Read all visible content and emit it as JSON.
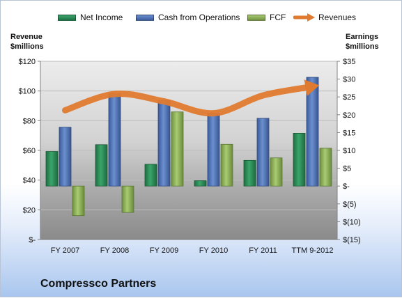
{
  "chart_data": {
    "type": "bar",
    "categories": [
      "FY 2007",
      "FY 2008",
      "FY 2009",
      "FY 2010",
      "FY 2011",
      "TTM 9-2012"
    ],
    "series": [
      {
        "name": "Net Income",
        "axis": "right",
        "type": "bar",
        "color": "#2e8b57",
        "values": [
          9.7,
          11.6,
          6.1,
          1.5,
          7.2,
          14.8
        ]
      },
      {
        "name": "Cash from Operations",
        "axis": "right",
        "type": "bar",
        "color": "#4f73b8",
        "values": [
          16.5,
          26.0,
          24.0,
          20.5,
          19.0,
          30.5
        ]
      },
      {
        "name": "FCF",
        "axis": "right",
        "type": "bar",
        "color": "#8eb35a",
        "values": [
          -8.3,
          -7.4,
          20.8,
          11.7,
          7.9,
          10.6
        ]
      },
      {
        "name": "Revenues",
        "axis": "left",
        "type": "line",
        "color": "#e07a2e",
        "values": [
          87,
          98,
          93,
          85,
          97,
          103
        ]
      }
    ],
    "left_axis": {
      "label": "Revenue\n$millions",
      "ylim": [
        0,
        120
      ],
      "ticks": [
        "$-",
        "$20",
        "$40",
        "$60",
        "$80",
        "$100",
        "$120"
      ]
    },
    "right_axis": {
      "label": "Earnings\n$millions",
      "ylim": [
        -15,
        35
      ],
      "ticks": [
        "$(15)",
        "$(10)",
        "$(5)",
        "$-",
        "$5",
        "$10",
        "$15",
        "$20",
        "$25",
        "$30",
        "$35"
      ]
    },
    "legend_placement": "top",
    "grid": true,
    "caption": "Compressco Partners"
  }
}
